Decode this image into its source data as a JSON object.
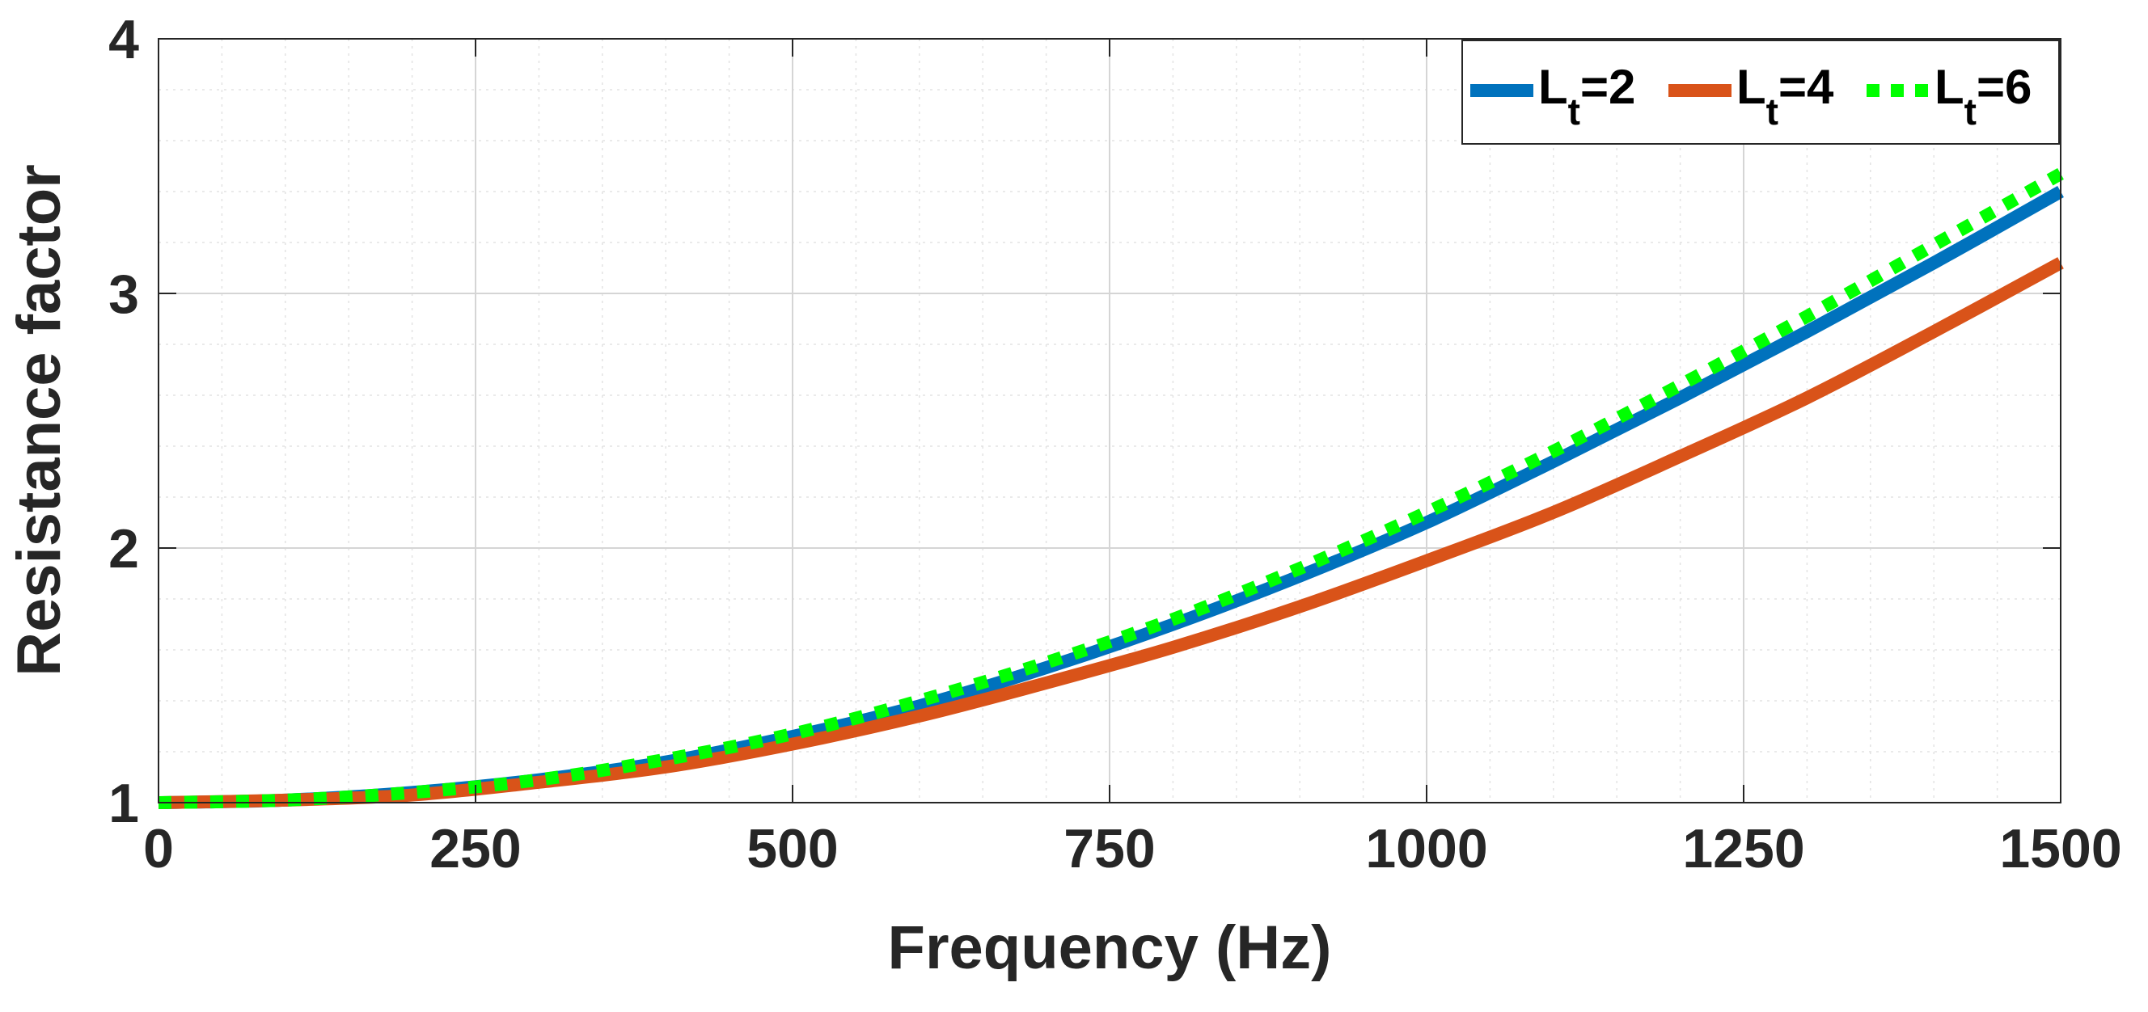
{
  "chart_data": {
    "type": "line",
    "title": "",
    "xlabel": "Frequency (Hz)",
    "ylabel": "Resistance factor",
    "xlim": [
      0,
      1500
    ],
    "ylim": [
      1,
      4
    ],
    "xticks": [
      0,
      250,
      500,
      750,
      1000,
      1250,
      1500
    ],
    "xtick_labels": [
      "0",
      "250",
      "500",
      "750",
      "1000",
      "1250",
      "1500"
    ],
    "yticks": [
      1,
      2,
      3,
      4
    ],
    "ytick_labels": [
      "1",
      "2",
      "3",
      "4"
    ],
    "grid": true,
    "minor_grid": true,
    "legend_position": "top-right",
    "x": [
      0,
      100,
      200,
      300,
      400,
      500,
      600,
      700,
      800,
      900,
      1000,
      1100,
      1200,
      1300,
      1400,
      1500
    ],
    "series": [
      {
        "name": "Lt=2",
        "label_main": "L",
        "label_sub": "t",
        "label_tail": "=2",
        "color": "#0072BD",
        "style": "solid",
        "values": [
          1.0,
          1.01,
          1.04,
          1.09,
          1.16,
          1.26,
          1.38,
          1.53,
          1.7,
          1.89,
          2.1,
          2.34,
          2.59,
          2.85,
          3.12,
          3.4
        ]
      },
      {
        "name": "Lt=4",
        "label_main": "L",
        "label_sub": "t",
        "label_tail": "=4",
        "color": "#D95319",
        "style": "solid",
        "values": [
          1.0,
          1.01,
          1.03,
          1.08,
          1.14,
          1.23,
          1.34,
          1.47,
          1.61,
          1.77,
          1.95,
          2.14,
          2.36,
          2.59,
          2.85,
          3.12
        ]
      },
      {
        "name": "Lt=6",
        "label_main": "L",
        "label_sub": "t",
        "label_tail": "=6",
        "color": "#00FF00",
        "style": "dotted",
        "values": [
          1.0,
          1.01,
          1.04,
          1.09,
          1.17,
          1.27,
          1.4,
          1.55,
          1.72,
          1.92,
          2.14,
          2.38,
          2.64,
          2.91,
          3.19,
          3.47
        ]
      }
    ]
  }
}
